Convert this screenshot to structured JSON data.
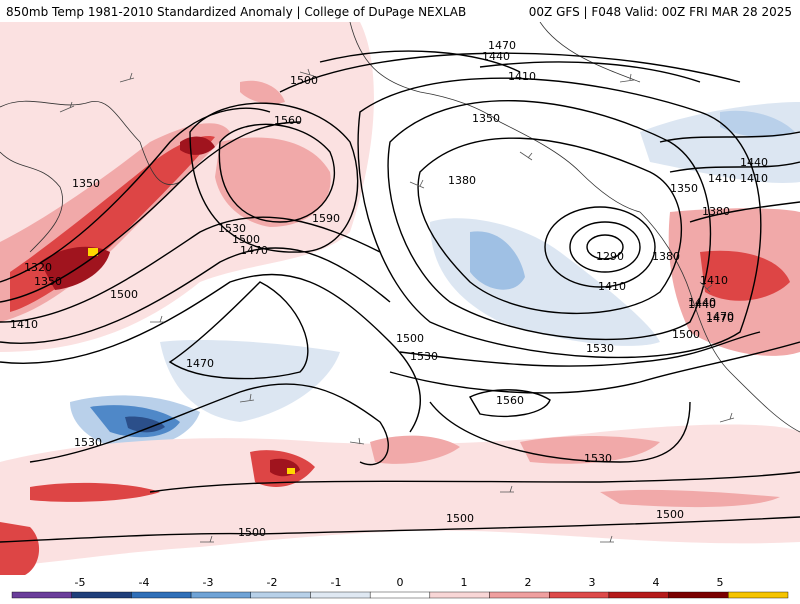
{
  "header": {
    "title_left": "850mb Temp 1981-2010 Standardized Anomaly | College of DuPage NEXLAB",
    "title_right": "00Z GFS | F048 Valid: 00Z FRI MAR 28 2025"
  },
  "contour_labels": [
    "1470",
    "1440",
    "1410",
    "1350",
    "1380",
    "1290",
    "1380",
    "1410",
    "1440",
    "1470",
    "1500",
    "1560",
    "1590",
    "1500",
    "1530",
    "1500",
    "1470",
    "1350",
    "1320",
    "1350",
    "1410",
    "1500",
    "1470",
    "1500",
    "1530",
    "1530",
    "1560",
    "1530",
    "1500",
    "1500",
    "1500",
    "1530",
    "1440",
    "1410",
    "1380",
    "1350",
    "1410",
    "1410",
    "1440",
    "1470"
  ],
  "colorbar": {
    "ticks": [
      "-5",
      "-4",
      "-3",
      "-2",
      "-1",
      "0",
      "1",
      "2",
      "3",
      "4",
      "5"
    ],
    "colors": [
      "#6a3d9a",
      "#1f3f7a",
      "#2f6fb8",
      "#6fa3d6",
      "#b7d0e8",
      "#dfe8f2",
      "#ffffff",
      "#f8d6d6",
      "#ef9f9f",
      "#dd4a4a",
      "#b51b1b",
      "#7a0000",
      "#f5c400"
    ]
  },
  "colors": {
    "neg_light": "#dce6f2",
    "neg_mid": "#b9d0ea",
    "neg_strong": "#6fa1d4",
    "neg_deep": "#2b5e9e",
    "pos_light": "#fbe1e1",
    "pos_mid": "#f1a9a9",
    "pos_strong": "#dd4545",
    "pos_deep": "#a0141e",
    "max": "#ffd700"
  }
}
